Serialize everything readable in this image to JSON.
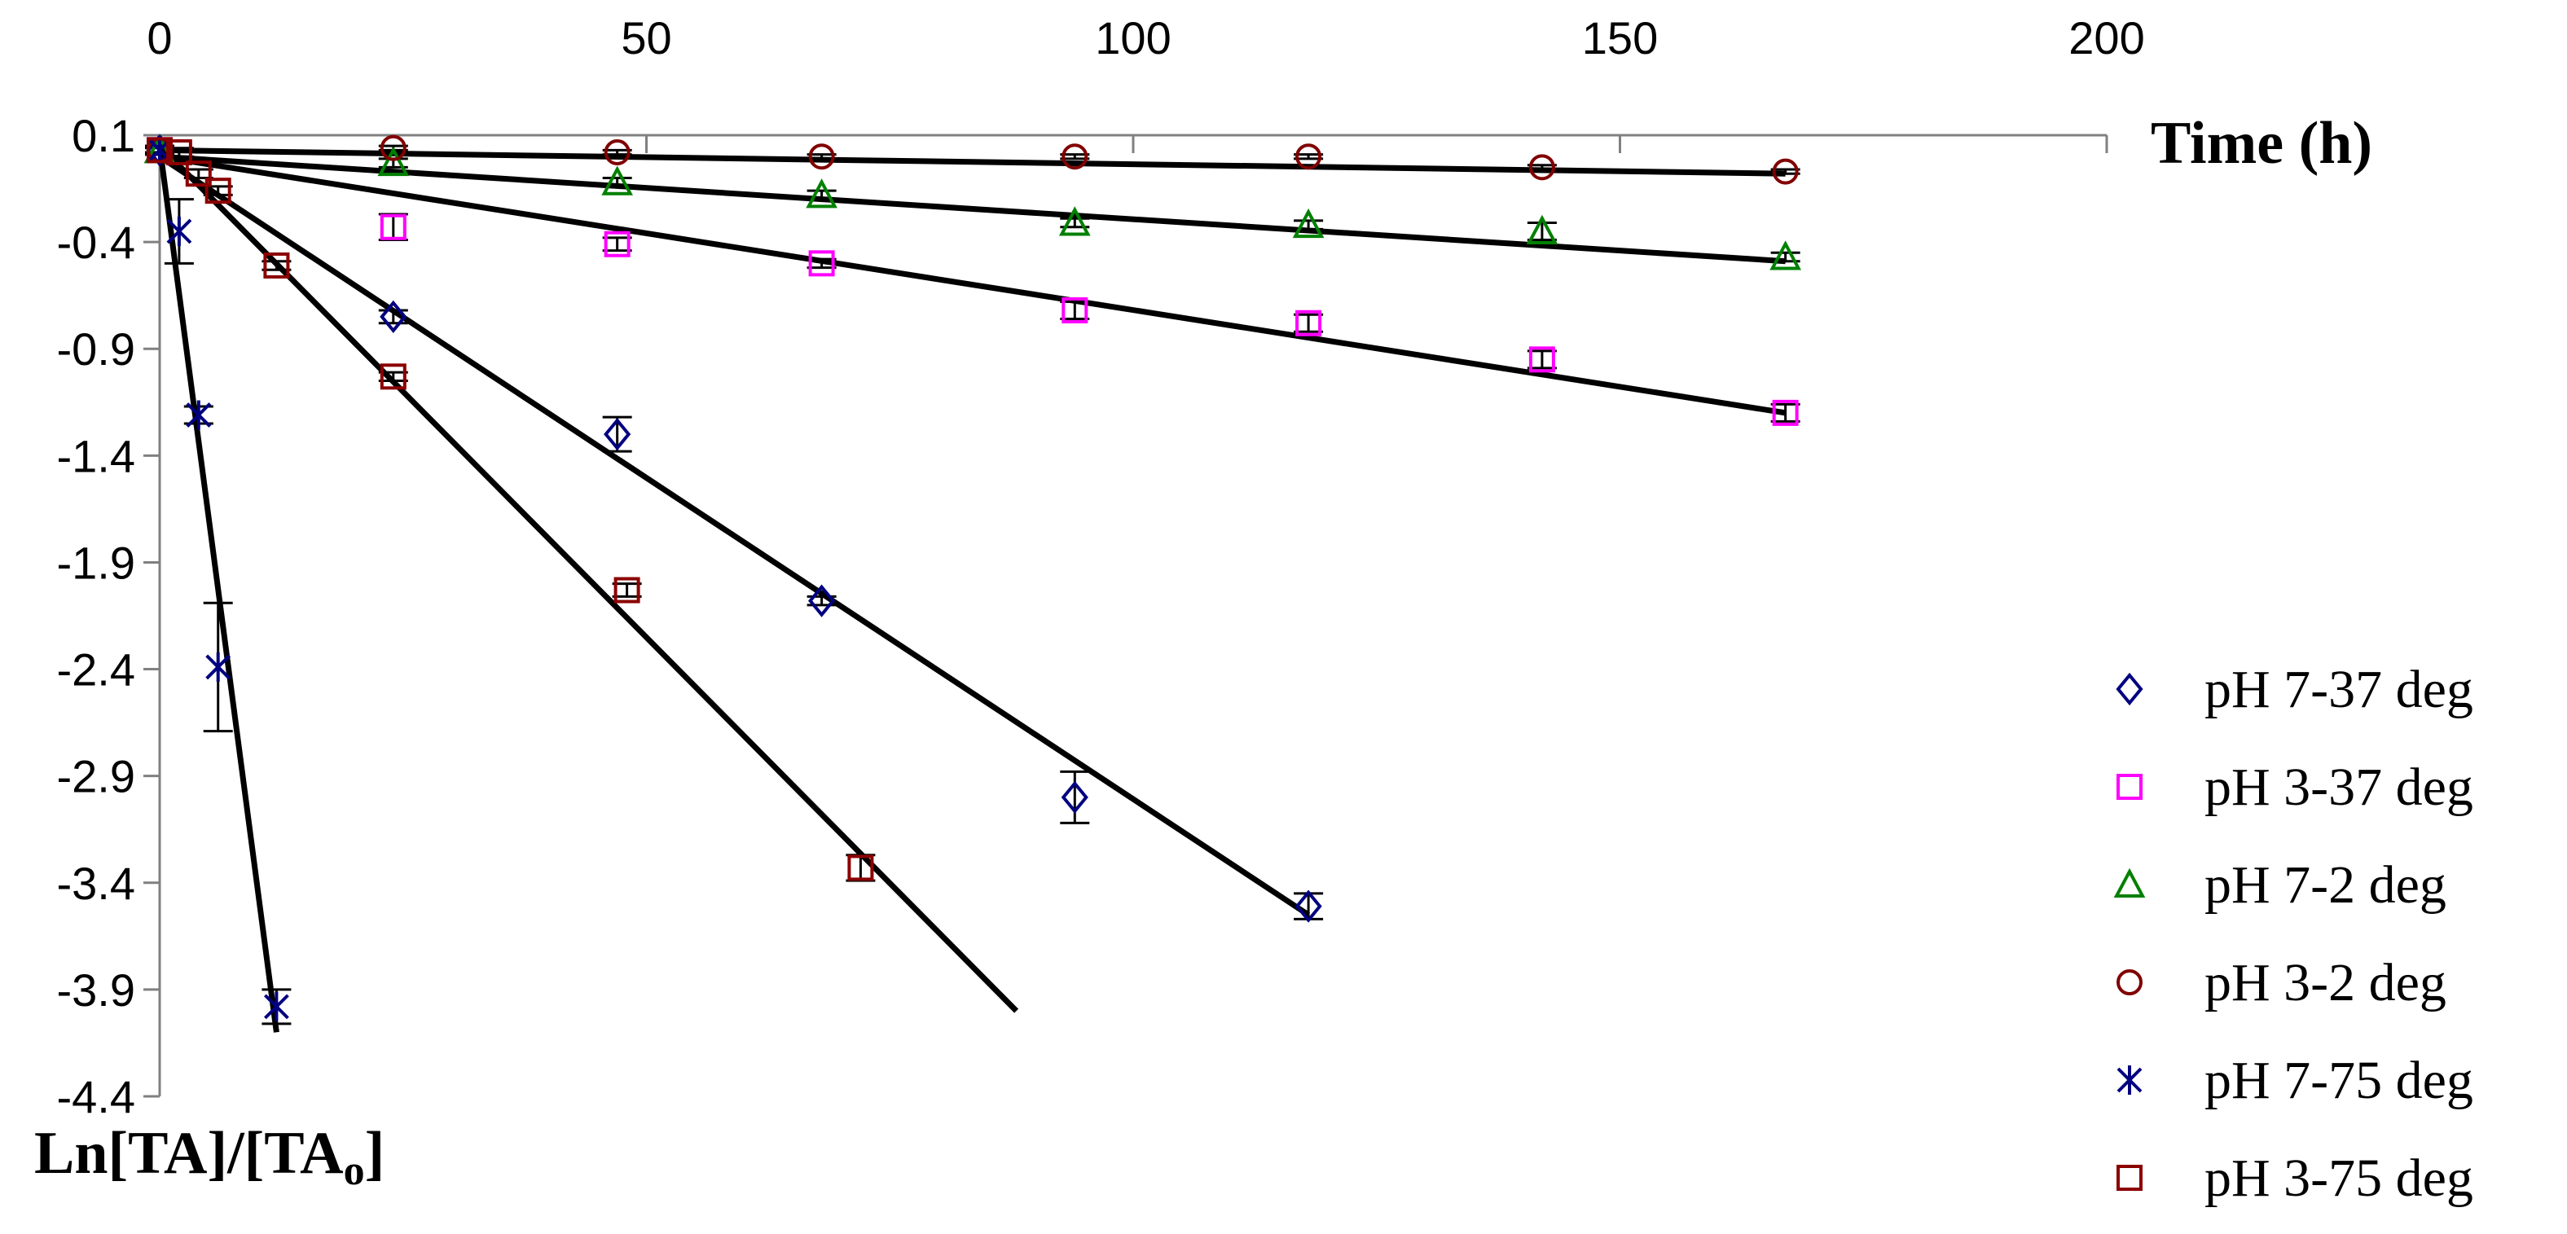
{
  "chart_data": {
    "type": "scatter",
    "xlabel": "Time (h)",
    "ylabel_main": "Ln[TA]/[TA",
    "ylabel_sub": "o",
    "ylabel_end": "]",
    "xlim": [
      0,
      200
    ],
    "ylim": [
      -4.4,
      0.1
    ],
    "x_ticks": [
      "0",
      "50",
      "100",
      "150",
      "200"
    ],
    "y_ticks": [
      "0.1",
      "-0.4",
      "-0.9",
      "-1.4",
      "-1.9",
      "-2.4",
      "-2.9",
      "-3.4",
      "-3.9",
      "-4.4"
    ],
    "grid": false,
    "legend_position": "right",
    "series": [
      {
        "name": "pH 7-37 deg",
        "marker": "diamond",
        "color": "#000080",
        "x": [
          0,
          24,
          47,
          68,
          94,
          118
        ],
        "y": [
          0.03,
          -0.75,
          -1.3,
          -2.08,
          -3.0,
          -3.51
        ],
        "err": [
          0.02,
          0.03,
          0.08,
          0.02,
          0.12,
          0.06
        ],
        "fit": {
          "x": [
            0,
            118
          ],
          "y": [
            0.0,
            -3.55
          ]
        }
      },
      {
        "name": "pH 3-37 deg",
        "marker": "square",
        "color": "#ff00ff",
        "x": [
          0,
          24,
          47,
          68,
          94,
          118,
          142,
          167
        ],
        "y": [
          0.03,
          -0.33,
          -0.41,
          -0.5,
          -0.72,
          -0.78,
          -0.95,
          -1.2
        ],
        "err": [
          0.02,
          0.06,
          0.03,
          0.02,
          0.04,
          0.04,
          0.04,
          0.04
        ],
        "fit": {
          "x": [
            0,
            167
          ],
          "y": [
            0.0,
            -1.2
          ]
        }
      },
      {
        "name": "pH 7-2 deg",
        "marker": "triangle",
        "color": "#008000",
        "x": [
          0,
          24,
          47,
          68,
          94,
          118,
          142,
          167
        ],
        "y": [
          0.03,
          -0.03,
          -0.12,
          -0.18,
          -0.31,
          -0.32,
          -0.35,
          -0.47
        ],
        "err": [
          0.02,
          0.02,
          0.02,
          0.02,
          0.02,
          0.02,
          0.04,
          0.02
        ],
        "fit": {
          "x": [
            0,
            167
          ],
          "y": [
            0.0,
            -0.49
          ]
        }
      },
      {
        "name": "pH 3-2 deg",
        "marker": "circle",
        "color": "#800000",
        "x": [
          0,
          24,
          47,
          68,
          94,
          118,
          142,
          167
        ],
        "y": [
          0.03,
          0.04,
          0.02,
          0.0,
          0.0,
          0.0,
          -0.05,
          -0.07
        ],
        "err": [
          0.01,
          0.01,
          0.01,
          0.01,
          0.01,
          0.01,
          0.01,
          0.01
        ],
        "fit": {
          "x": [
            0,
            167
          ],
          "y": [
            0.03,
            -0.08
          ]
        }
      },
      {
        "name": "pH 7-75 deg",
        "marker": "star",
        "color": "#000080",
        "x": [
          0,
          2,
          4,
          6,
          12
        ],
        "y": [
          0.03,
          -0.35,
          -1.21,
          -2.39,
          -3.98
        ],
        "err": [
          0.02,
          0.15,
          0.04,
          0.3,
          0.08
        ],
        "fit": {
          "x": [
            0,
            12
          ],
          "y": [
            0.05,
            -4.1
          ]
        }
      },
      {
        "name": "pH 3-75 deg",
        "marker": "square",
        "color": "#8b0000",
        "x": [
          0,
          2,
          4,
          6,
          12,
          24,
          48,
          72
        ],
        "y": [
          0.03,
          0.02,
          -0.08,
          -0.16,
          -0.51,
          -1.03,
          -2.03,
          -3.33
        ],
        "err": [
          0.02,
          0.02,
          0.02,
          0.02,
          0.02,
          0.02,
          0.03,
          0.06
        ],
        "fit": {
          "x": [
            0,
            88
          ],
          "y": [
            0.05,
            -4.0
          ]
        }
      }
    ]
  }
}
